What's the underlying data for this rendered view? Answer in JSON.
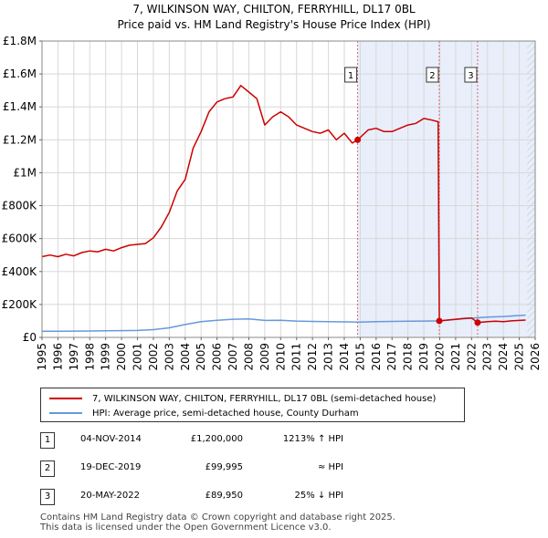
{
  "title": {
    "line1": "7, WILKINSON WAY, CHILTON, FERRYHILL, DL17 0BL",
    "line2": "Price paid vs. HM Land Registry's House Price Index (HPI)"
  },
  "chart_data": {
    "type": "line",
    "title": "7, WILKINSON WAY, CHILTON, FERRYHILL, DL17 0BL — Price paid vs. HM Land Registry's House Price Index (HPI)",
    "xlabel": "",
    "ylabel": "",
    "xlim": [
      1995,
      2026
    ],
    "ylim": [
      0,
      1800000
    ],
    "x_ticks": [
      "1995",
      "1996",
      "1997",
      "1998",
      "1999",
      "2000",
      "2001",
      "2002",
      "2003",
      "2004",
      "2005",
      "2006",
      "2007",
      "2008",
      "2009",
      "2010",
      "2011",
      "2012",
      "2013",
      "2014",
      "2015",
      "2016",
      "2017",
      "2018",
      "2019",
      "2020",
      "2021",
      "2022",
      "2023",
      "2024",
      "2025",
      "2026"
    ],
    "y_ticks": [
      {
        "value": 0,
        "label": "£0"
      },
      {
        "value": 200000,
        "label": "£200K"
      },
      {
        "value": 400000,
        "label": "£400K"
      },
      {
        "value": 600000,
        "label": "£600K"
      },
      {
        "value": 800000,
        "label": "£800K"
      },
      {
        "value": 1000000,
        "label": "£1M"
      },
      {
        "value": 1200000,
        "label": "£1.2M"
      },
      {
        "value": 1400000,
        "label": "£1.4M"
      },
      {
        "value": 1600000,
        "label": "£1.6M"
      },
      {
        "value": 1800000,
        "label": "£1.8M"
      }
    ],
    "grid": true,
    "shaded_regions": [
      {
        "from": 2014.84,
        "to": 2026
      }
    ],
    "hatched_region": {
      "from": 2025.5,
      "to": 2026
    },
    "series": [
      {
        "name": "7, WILKINSON WAY, CHILTON, FERRYHILL, DL17 0BL (semi-detached house)",
        "color": "#cc0000",
        "points": [
          [
            1995.0,
            490000
          ],
          [
            1995.5,
            500000
          ],
          [
            1996.0,
            490000
          ],
          [
            1996.5,
            505000
          ],
          [
            1997.0,
            495000
          ],
          [
            1997.5,
            515000
          ],
          [
            1998.0,
            525000
          ],
          [
            1998.5,
            520000
          ],
          [
            1999.0,
            535000
          ],
          [
            1999.5,
            525000
          ],
          [
            2000.0,
            545000
          ],
          [
            2000.5,
            560000
          ],
          [
            2001.0,
            565000
          ],
          [
            2001.5,
            570000
          ],
          [
            2002.0,
            605000
          ],
          [
            2002.5,
            670000
          ],
          [
            2003.0,
            760000
          ],
          [
            2003.5,
            890000
          ],
          [
            2004.0,
            960000
          ],
          [
            2004.5,
            1150000
          ],
          [
            2005.0,
            1250000
          ],
          [
            2005.5,
            1370000
          ],
          [
            2006.0,
            1430000
          ],
          [
            2006.5,
            1450000
          ],
          [
            2007.0,
            1460000
          ],
          [
            2007.5,
            1530000
          ],
          [
            2008.0,
            1490000
          ],
          [
            2008.5,
            1450000
          ],
          [
            2009.0,
            1290000
          ],
          [
            2009.5,
            1340000
          ],
          [
            2010.0,
            1370000
          ],
          [
            2010.5,
            1340000
          ],
          [
            2011.0,
            1290000
          ],
          [
            2011.5,
            1270000
          ],
          [
            2012.0,
            1250000
          ],
          [
            2012.5,
            1240000
          ],
          [
            2013.0,
            1260000
          ],
          [
            2013.5,
            1200000
          ],
          [
            2014.0,
            1240000
          ],
          [
            2014.5,
            1180000
          ],
          [
            2014.84,
            1200000
          ],
          [
            2015.5,
            1260000
          ],
          [
            2016.0,
            1270000
          ],
          [
            2016.5,
            1250000
          ],
          [
            2017.0,
            1250000
          ],
          [
            2017.5,
            1270000
          ],
          [
            2018.0,
            1290000
          ],
          [
            2018.5,
            1300000
          ],
          [
            2019.0,
            1330000
          ],
          [
            2019.5,
            1320000
          ],
          [
            2019.9,
            1310000
          ],
          [
            2019.97,
            99995
          ],
          [
            2020.5,
            105000
          ],
          [
            2021.0,
            110000
          ],
          [
            2021.5,
            115000
          ],
          [
            2022.0,
            118000
          ],
          [
            2022.38,
            89950
          ],
          [
            2023.0,
            95000
          ],
          [
            2023.5,
            98000
          ],
          [
            2024.0,
            96000
          ],
          [
            2024.5,
            100000
          ],
          [
            2025.0,
            103000
          ],
          [
            2025.4,
            105000
          ]
        ]
      },
      {
        "name": "HPI: Average price, semi-detached house, County Durham",
        "color": "#6699dd",
        "points": [
          [
            1995.0,
            37000
          ],
          [
            1996.0,
            37500
          ],
          [
            1997.0,
            38000
          ],
          [
            1998.0,
            39000
          ],
          [
            1999.0,
            40000
          ],
          [
            2000.0,
            41000
          ],
          [
            2001.0,
            42000
          ],
          [
            2002.0,
            47000
          ],
          [
            2003.0,
            58000
          ],
          [
            2004.0,
            78000
          ],
          [
            2005.0,
            95000
          ],
          [
            2006.0,
            104000
          ],
          [
            2007.0,
            110000
          ],
          [
            2008.0,
            112000
          ],
          [
            2009.0,
            103000
          ],
          [
            2010.0,
            104000
          ],
          [
            2011.0,
            99000
          ],
          [
            2012.0,
            97000
          ],
          [
            2013.0,
            95000
          ],
          [
            2014.0,
            94000
          ],
          [
            2015.0,
            93000
          ],
          [
            2016.0,
            95000
          ],
          [
            2017.0,
            97000
          ],
          [
            2018.0,
            98000
          ],
          [
            2019.0,
            99000
          ],
          [
            2020.0,
            100000
          ],
          [
            2021.0,
            109000
          ],
          [
            2022.0,
            117000
          ],
          [
            2023.0,
            123000
          ],
          [
            2024.0,
            127000
          ],
          [
            2025.0,
            133000
          ],
          [
            2025.4,
            135000
          ]
        ]
      }
    ],
    "markers": [
      {
        "label": "1",
        "x": 2014.84,
        "y": 1200000
      },
      {
        "label": "2",
        "x": 2019.97,
        "y": 99995
      },
      {
        "label": "3",
        "x": 2022.38,
        "y": 89950
      }
    ]
  },
  "legend": {
    "items": [
      {
        "label": "7, WILKINSON WAY, CHILTON, FERRYHILL, DL17 0BL (semi-detached house)",
        "color": "#cc0000"
      },
      {
        "label": "HPI: Average price, semi-detached house, County Durham",
        "color": "#6699dd"
      }
    ]
  },
  "transactions": [
    {
      "num": "1",
      "date": "04-NOV-2014",
      "price": "£1,200,000",
      "hpi": "1213% ↑ HPI"
    },
    {
      "num": "2",
      "date": "19-DEC-2019",
      "price": "£99,995",
      "hpi": "≈ HPI"
    },
    {
      "num": "3",
      "date": "20-MAY-2022",
      "price": "£89,950",
      "hpi": "25% ↓ HPI"
    }
  ],
  "footer": {
    "line1": "Contains HM Land Registry data © Crown copyright and database right 2025.",
    "line2": "This data is licensed under the Open Government Licence v3.0."
  }
}
